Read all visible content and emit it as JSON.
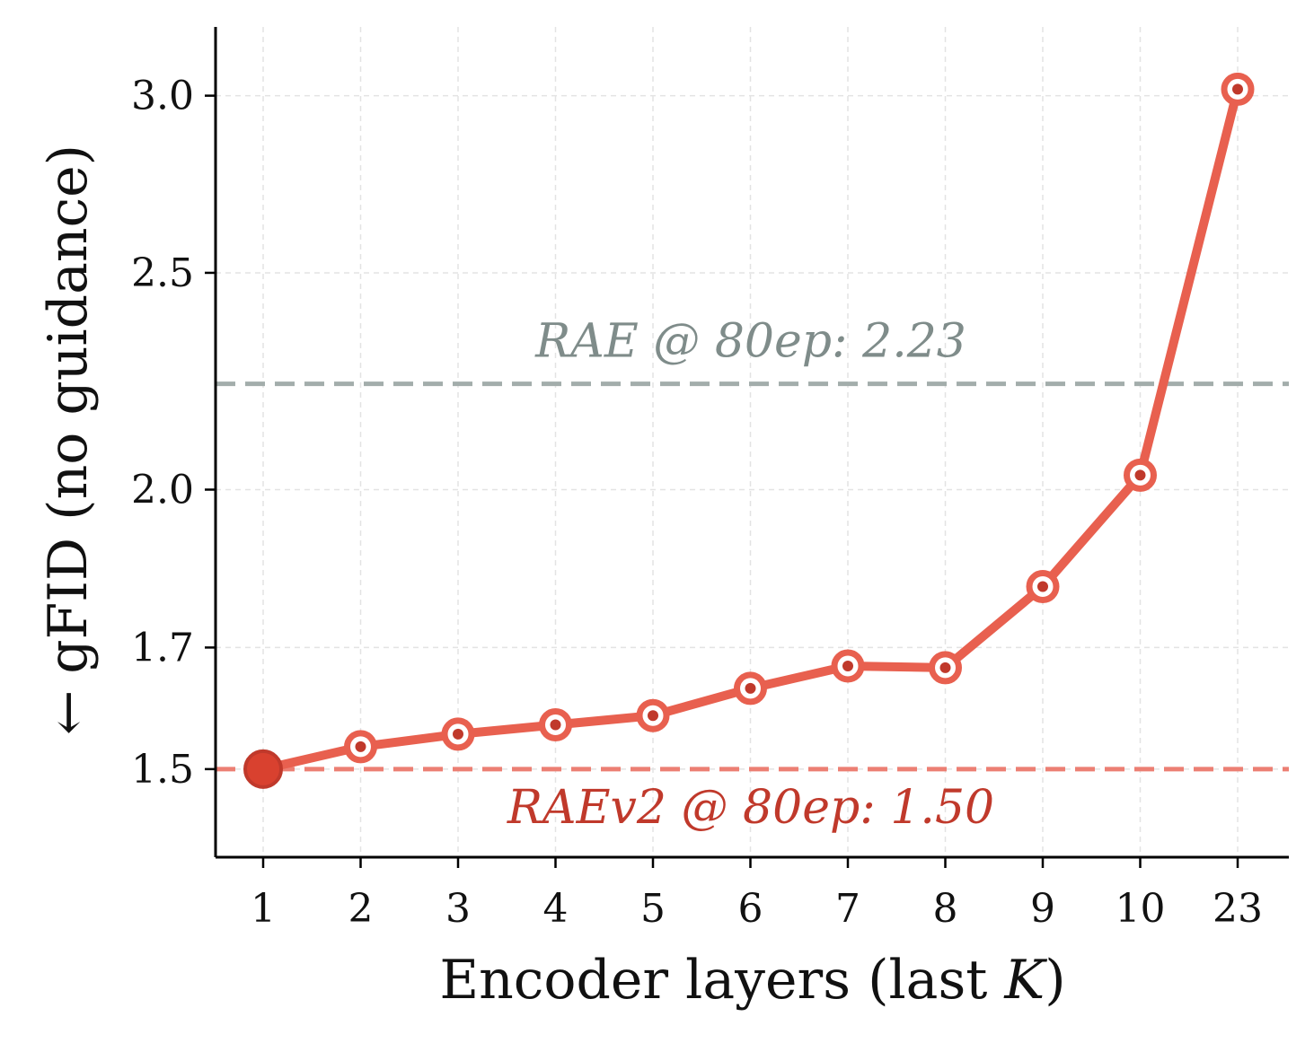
{
  "chart_data": {
    "type": "line",
    "xlabel": "Encoder layers (last K)",
    "xlabel_parts": {
      "prefix": "Encoder layers (last ",
      "var": "K",
      "suffix": ")"
    },
    "ylabel": "← gFID (no guidance)",
    "ylabel_arrow": "←",
    "ylabel_text": "gFID (no guidance)",
    "categories": [
      "1",
      "2",
      "3",
      "4",
      "5",
      "6",
      "7",
      "8",
      "9",
      "10",
      "23"
    ],
    "series": [
      {
        "values": [
          1.5,
          1.535,
          1.555,
          1.57,
          1.585,
          1.63,
          1.668,
          1.665,
          1.81,
          2.03,
          3.02
        ],
        "color": "#e8604f",
        "highlight_index": 0,
        "highlight_color": "#d9412f"
      }
    ],
    "yticks": [
      "1.5",
      "1.7",
      "2.0",
      "2.5",
      "3.0"
    ],
    "ylim": [
      1.37,
      3.22
    ],
    "y_scale": "log",
    "grid": true,
    "reference_lines": [
      {
        "label": "RAE @ 80ep: 2.23",
        "value": 2.23,
        "color": "#a3adab",
        "text_color": "#7f8c8a"
      },
      {
        "label": "RAEv2 @ 80ep: 1.50",
        "value": 1.5,
        "color": "#ec7f73",
        "text_color": "#c0392b"
      }
    ]
  }
}
